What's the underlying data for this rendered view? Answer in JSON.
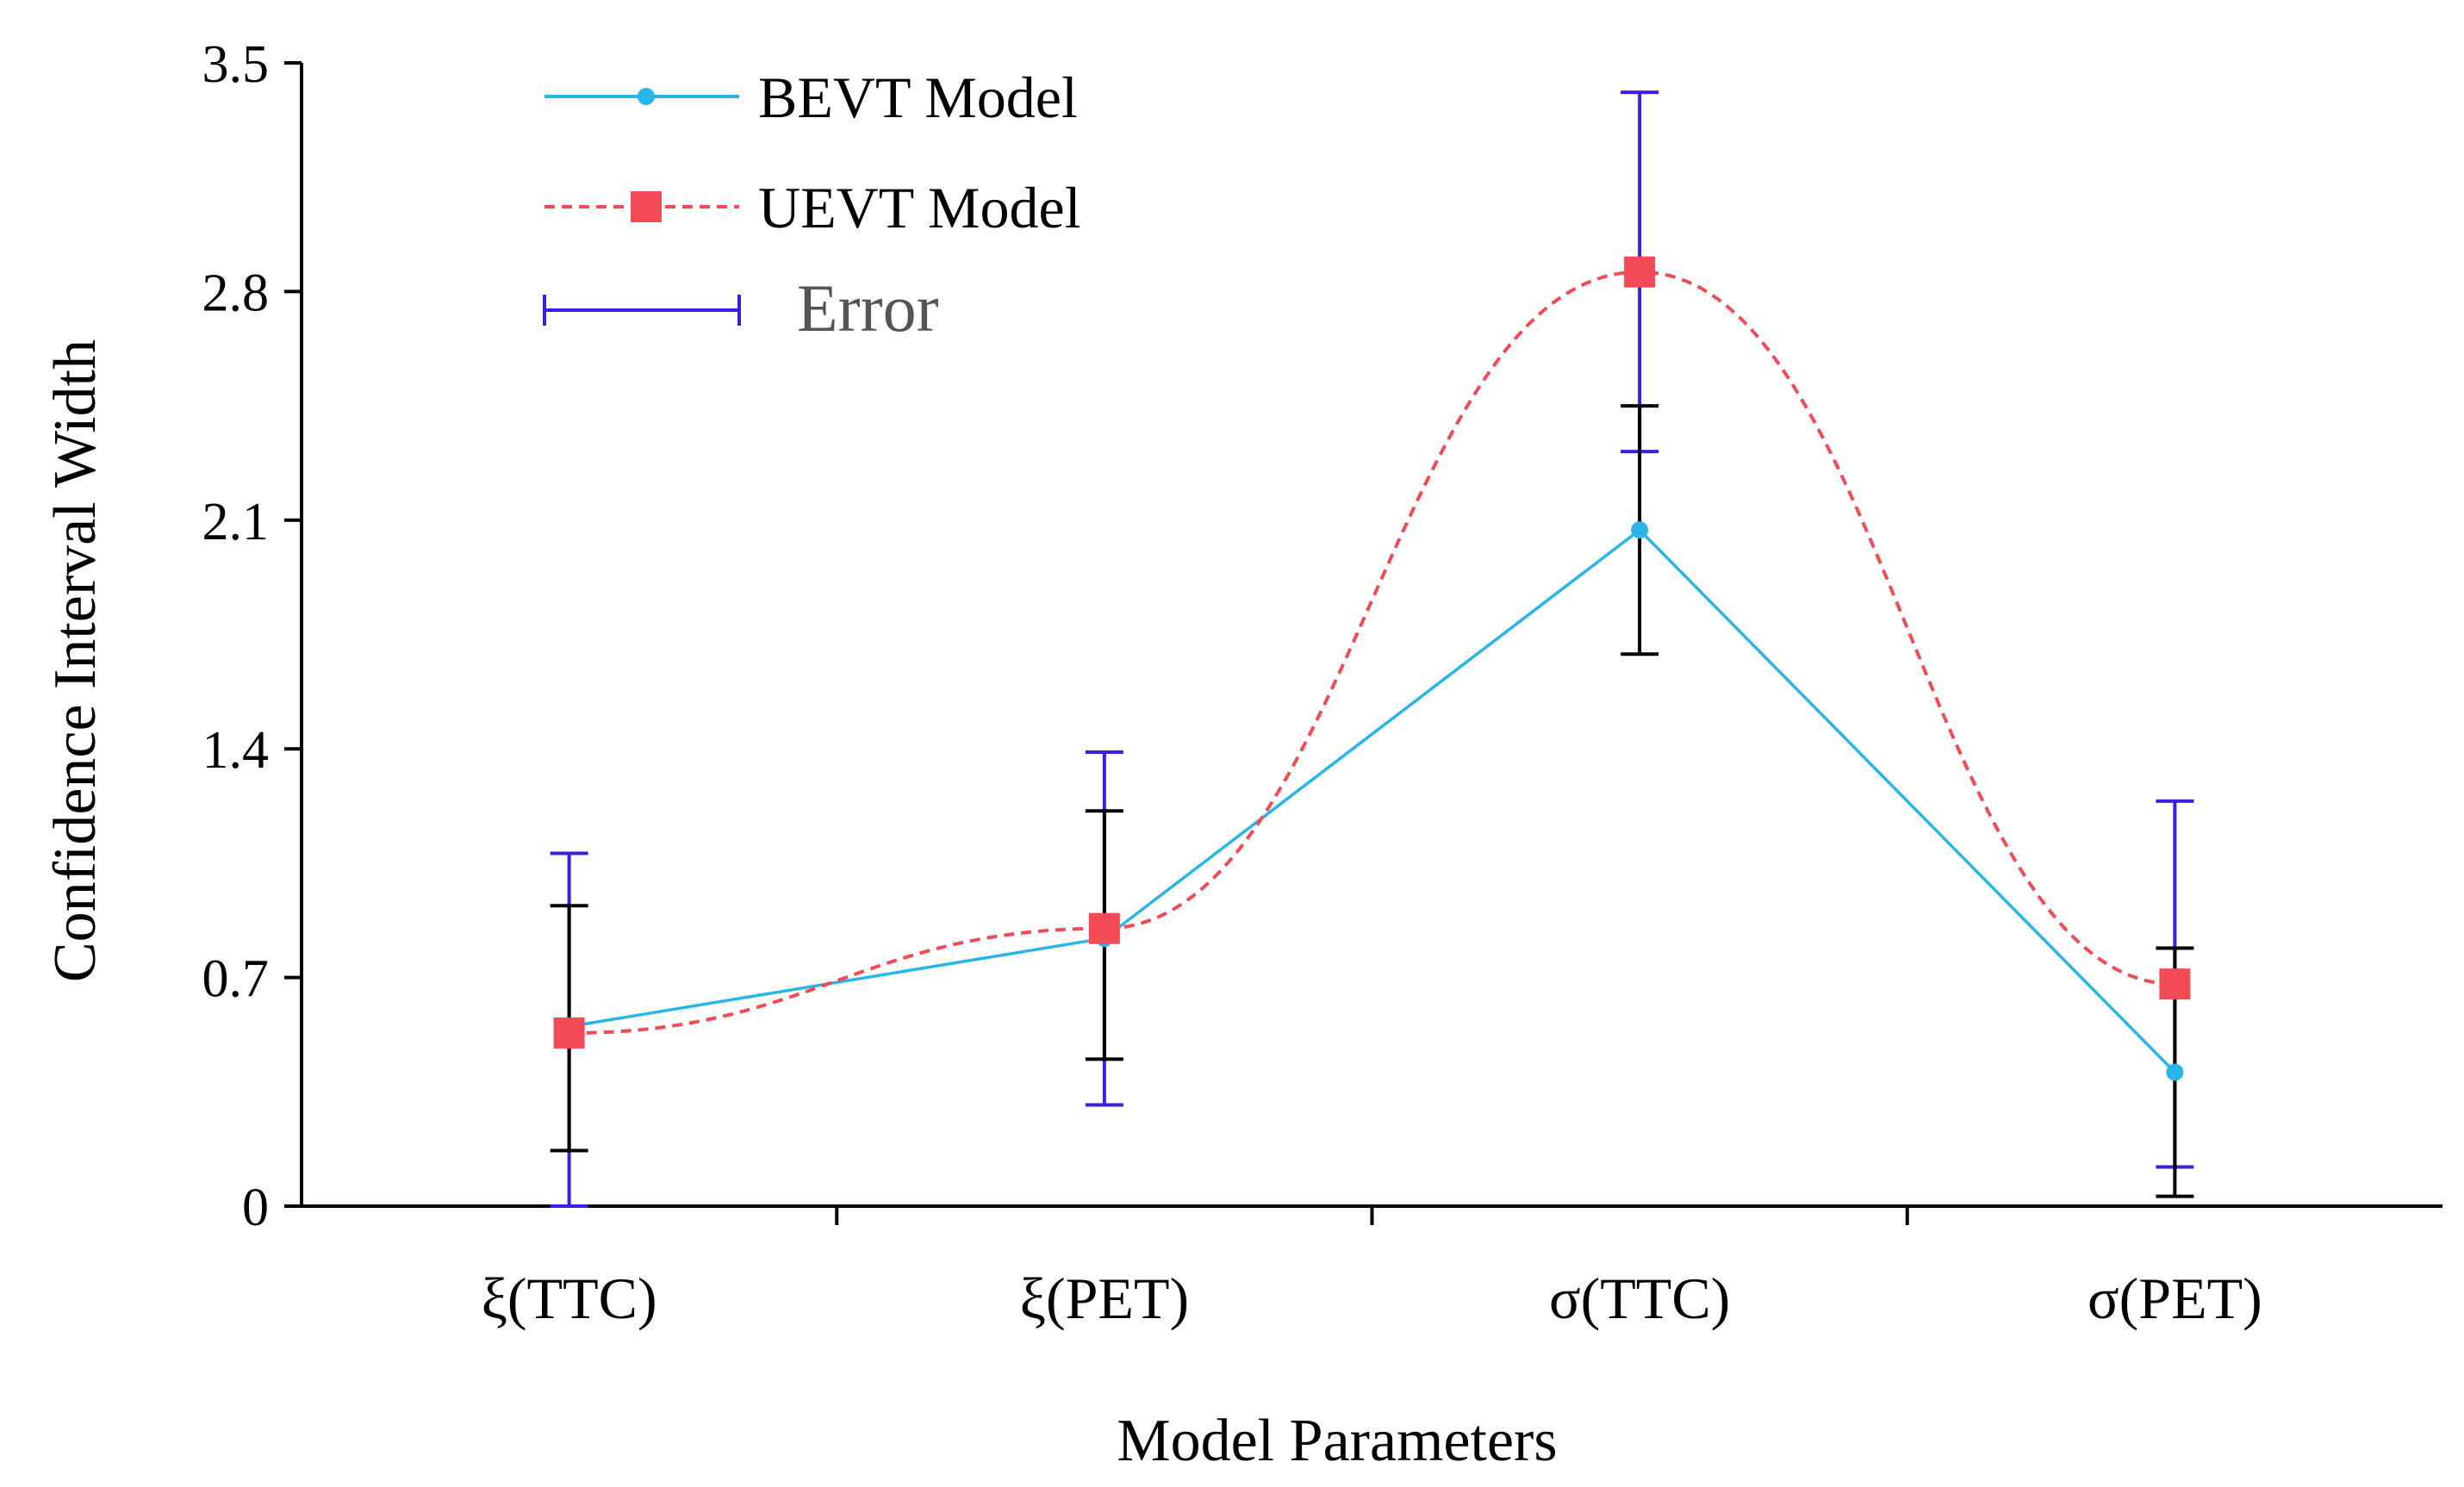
{
  "chart_data": {
    "type": "line",
    "title": "",
    "xlabel": "Model Parameters",
    "ylabel": "Confidence Interval Width",
    "categories": [
      "ξ(TTC)",
      "ξ(PET)",
      "σ(TTC)",
      "σ(PET)"
    ],
    "ylim": [
      0,
      3.5
    ],
    "yticks": [
      0,
      0.7,
      1.4,
      2.1,
      2.8,
      3.5
    ],
    "ytick_labels": [
      "0",
      "0.7",
      "1.4",
      "2.1",
      "2.8",
      "3.5"
    ],
    "grid": false,
    "legend_position": "top-left",
    "series": [
      {
        "name": "BEVT Model",
        "color": "#29b5e8",
        "line_style": "solid",
        "marker": "circle",
        "smooth": false,
        "values": [
          0.55,
          0.82,
          2.07,
          0.41
        ],
        "error_low": [
          0.17,
          0.45,
          1.69,
          0.03
        ],
        "error_high": [
          0.92,
          1.21,
          2.45,
          0.79
        ],
        "error_color": "#000000"
      },
      {
        "name": "UEVT Model",
        "color": "#f24b55",
        "line_style": "dashed",
        "marker": "square",
        "smooth": true,
        "values": [
          0.53,
          0.85,
          2.86,
          0.68
        ],
        "error_low": [
          0.0,
          0.31,
          2.31,
          0.12
        ],
        "error_high": [
          1.08,
          1.39,
          3.41,
          1.24
        ],
        "error_color": "#3b1ee0"
      }
    ],
    "legend": [
      {
        "label": "BEVT Model",
        "kind": "line",
        "series": 0
      },
      {
        "label": "UEVT Model",
        "kind": "line",
        "series": 1
      },
      {
        "label": "Error",
        "kind": "error",
        "color": "#3b1ee0"
      }
    ]
  }
}
